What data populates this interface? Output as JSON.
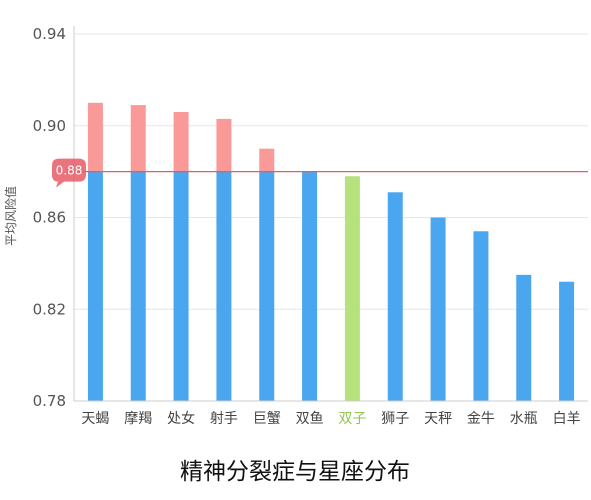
{
  "chart_data": {
    "type": "bar",
    "title": "精神分裂症与星座分布",
    "ylabel": "平均风险值",
    "xlabel": "",
    "ylim": [
      0.78,
      0.94
    ],
    "yticks": [
      "0.78",
      "0.82",
      "0.86",
      "0.90",
      "0.94"
    ],
    "categories": [
      "天蝎",
      "摩羯",
      "处女",
      "射手",
      "巨蟹",
      "双鱼",
      "双子",
      "狮子",
      "天秤",
      "金牛",
      "水瓶",
      "白羊"
    ],
    "values": [
      0.91,
      0.909,
      0.906,
      0.903,
      0.89,
      0.88,
      0.878,
      0.871,
      0.86,
      0.854,
      0.835,
      0.832
    ],
    "highlight_category": "双子",
    "reference_line": {
      "value": 0.88,
      "label": "0.88"
    },
    "grid": true,
    "colors": {
      "bar": "#4aa6ee",
      "above_reference": "#f99a98",
      "highlight": "#b6e27c",
      "highlight_label": "#8fc84d",
      "reference_line": "#e85a66",
      "grid": "#e6e6e6",
      "axis": "#cccccc"
    }
  }
}
